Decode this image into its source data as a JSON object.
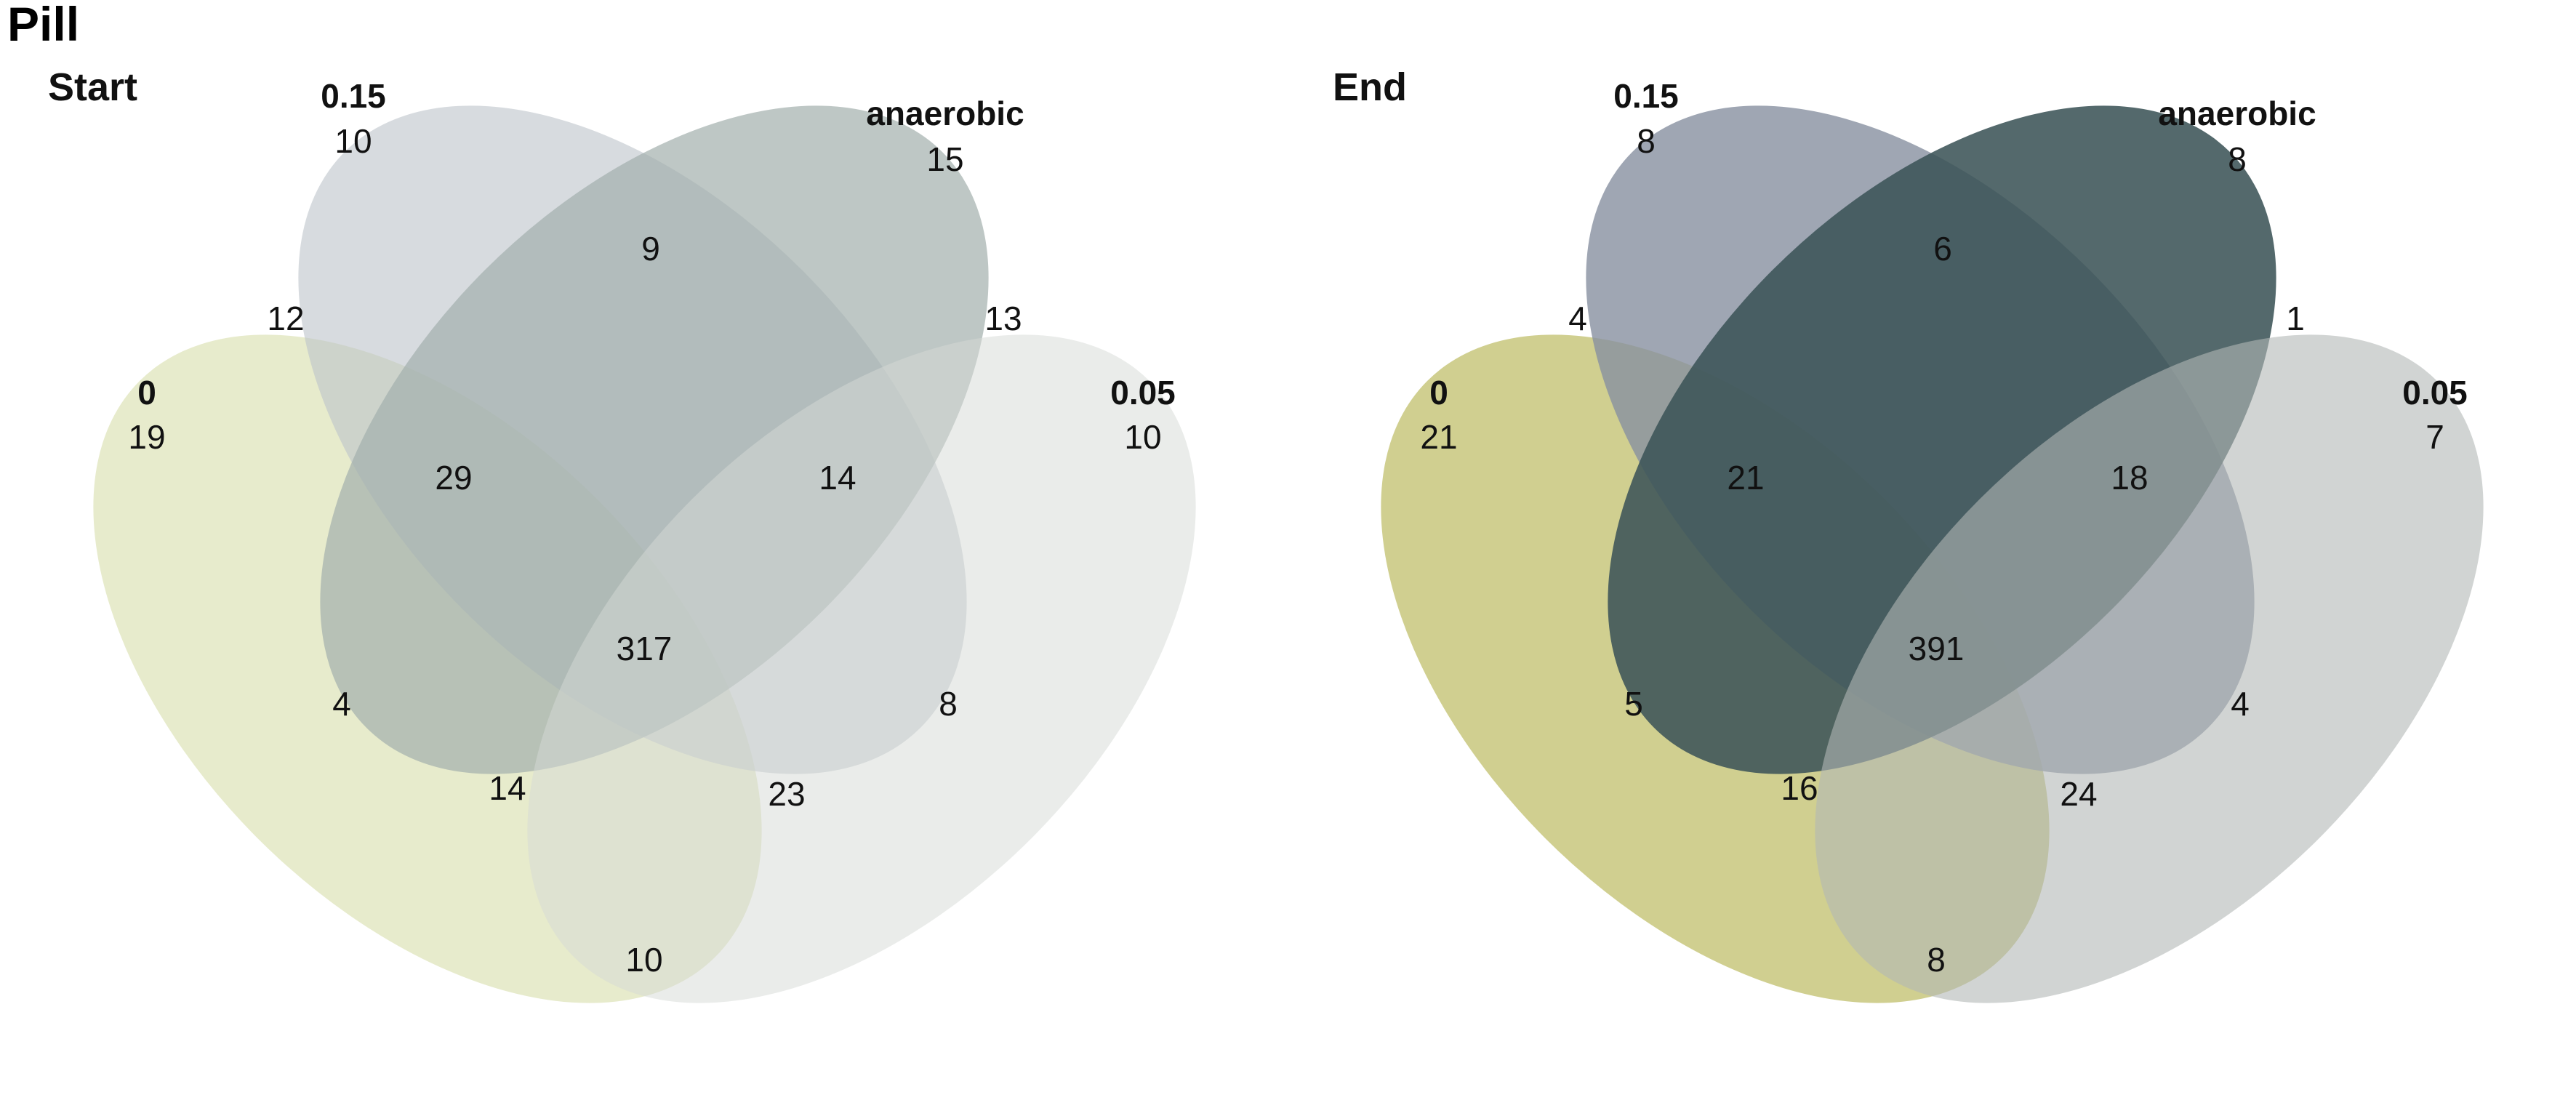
{
  "title": "Pill",
  "panels": [
    {
      "id": "start",
      "label": "Start",
      "sets": [
        {
          "name": "0",
          "color": "#dde2b6",
          "opacity": 0.7
        },
        {
          "name": "0.15",
          "color": "#bcc3c9",
          "opacity": 0.6
        },
        {
          "name": "anaerobic",
          "color": "#a2afac",
          "opacity": 0.7
        },
        {
          "name": "0.05",
          "color": "#d6dad6",
          "opacity": 0.5
        }
      ],
      "counts": {
        "only_0": "19",
        "only_015": "10",
        "only_anaerobic": "15",
        "only_005": "10",
        "r_0_015": "12",
        "r_015_anaerobic": "9",
        "r_anaerobic_005": "13",
        "r_0_015_anaerobic": "29",
        "r_015_anaerobic_005": "14",
        "r_0_anaerobic": "4",
        "r_0_015_005": "14",
        "r_015_005": "8",
        "all": "317",
        "r_0_anaerobic_005": "23",
        "r_0_005": "10"
      }
    },
    {
      "id": "end",
      "label": "End",
      "sets": [
        {
          "name": "0",
          "color": "#c4c374",
          "opacity": 0.8
        },
        {
          "name": "0.15",
          "color": "#8790a0",
          "opacity": 0.8
        },
        {
          "name": "anaerobic",
          "color": "#3c5458",
          "opacity": 0.88
        },
        {
          "name": "0.05",
          "color": "#b3b8b5",
          "opacity": 0.6
        }
      ],
      "counts": {
        "only_0": "21",
        "only_015": "8",
        "only_anaerobic": "8",
        "only_005": "7",
        "r_0_015": "4",
        "r_015_anaerobic": "6",
        "r_anaerobic_005": "1",
        "r_0_015_anaerobic": "21",
        "r_015_anaerobic_005": "18",
        "r_0_anaerobic": "5",
        "r_0_015_005": "16",
        "r_015_005": "4",
        "all": "391",
        "r_0_anaerobic_005": "24",
        "r_0_005": "8"
      }
    }
  ]
}
